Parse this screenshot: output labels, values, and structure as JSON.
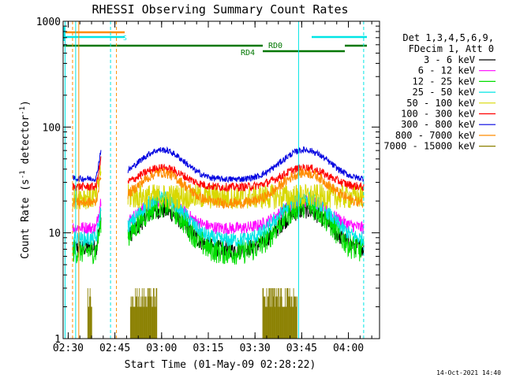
{
  "chart_data": {
    "type": "line",
    "title": "RHESSI Observing Summary Count Rates",
    "xlabel": "Start Time (01-May-09 02:28:22)",
    "ylabel": "Count Rate (s",
    "ylabel_sup1": "-1",
    "ylabel_mid": " detector",
    "ylabel_sup2": "-1",
    "ylabel_end": ")",
    "y_scale": "log",
    "ylim": [
      1,
      1000
    ],
    "xlim": [
      "02:28:22",
      "04:10:00"
    ],
    "x_ticks": [
      {
        "t": 30,
        "label": "02:30"
      },
      {
        "t": 45,
        "label": "02:45"
      },
      {
        "t": 60,
        "label": "03:00"
      },
      {
        "t": 75,
        "label": "03:15"
      },
      {
        "t": 90,
        "label": "03:30"
      },
      {
        "t": 105,
        "label": "03:45"
      },
      {
        "t": 120,
        "label": "04:00"
      }
    ],
    "y_ticks": [
      {
        "v": 1,
        "label": "1"
      },
      {
        "v": 10,
        "label": "10"
      },
      {
        "v": 100,
        "label": "100"
      },
      {
        "v": 1000,
        "label": "1000"
      }
    ],
    "legend": {
      "header1": "Det 1,3,4,5,6,9,",
      "header2": "FDecim 1, Att 0",
      "placement": "right"
    },
    "series": [
      {
        "name": "3 - 6 keV",
        "color": "#000000",
        "base": 7.0,
        "mult": 2.4,
        "noise": 0.08
      },
      {
        "name": "6 - 12 keV",
        "color": "#ff00ff",
        "base": 11.0,
        "mult": 1.85,
        "noise": 0.06
      },
      {
        "name": "12 - 25 keV",
        "color": "#00dd00",
        "base": 6.5,
        "mult": 2.9,
        "noise": 0.12
      },
      {
        "name": "25 - 50 keV",
        "color": "#00e5e5",
        "base": 8.5,
        "mult": 2.6,
        "noise": 0.07
      },
      {
        "name": "50 - 100 keV",
        "color": "#d8d800",
        "base": 22.0,
        "mult": 1.0,
        "noise": 0.12
      },
      {
        "name": "100 - 300 keV",
        "color": "#ff0000",
        "base": 27.0,
        "mult": 1.55,
        "noise": 0.04
      },
      {
        "name": "300 - 800 keV",
        "color": "#0000e0",
        "base": 32.0,
        "mult": 1.95,
        "noise": 0.03
      },
      {
        "name": "800 - 7000 keV",
        "color": "#ff8c00",
        "base": 19.0,
        "mult": 2.0,
        "noise": 0.05
      },
      {
        "name": "7000 - 15000 keV",
        "color": "#8b8000",
        "base": 1.0,
        "mult": 1.0,
        "noise": 0.0
      }
    ],
    "flag_labels": {
      "rd0": "RD0",
      "rd4": "RD4",
      "s": "S"
    },
    "colors": {
      "saa": "#00e5e5",
      "night": "#ff8c00",
      "attenuator": "#007700",
      "flare": "#00e5e5"
    },
    "footer": "14-Oct-2021 14:40"
  }
}
